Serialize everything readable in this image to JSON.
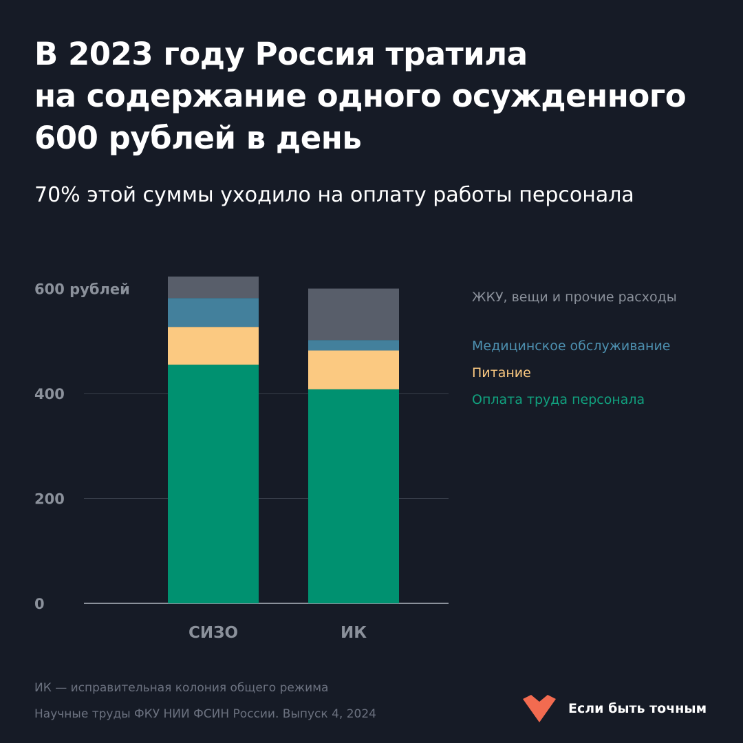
{
  "header": {
    "title_lines": [
      "В 2023 году Россия тратила",
      "на содержание одного осужденного",
      "600 рублей в день"
    ],
    "subtitle": "70% этой суммы уходило на оплату работы персонала"
  },
  "chart_data": {
    "type": "bar",
    "stacked": true,
    "categories": [
      "СИЗО",
      "ИК"
    ],
    "series": [
      {
        "name": "Оплата труда персонала",
        "values": [
          455,
          408
        ],
        "color": "#009170"
      },
      {
        "name": "Питание",
        "values": [
          72,
          74
        ],
        "color": "#fbc981"
      },
      {
        "name": "Медицинское обслуживание",
        "values": [
          55,
          20
        ],
        "color": "#43809c"
      },
      {
        "name": "ЖКУ, вещи и прочие расходы",
        "values": [
          41,
          98
        ],
        "color": "#585e6a"
      }
    ],
    "legend_order": [
      3,
      2,
      1,
      0
    ],
    "yticks": [
      {
        "value": 0,
        "label": "0"
      },
      {
        "value": 200,
        "label": "200"
      },
      {
        "value": 400,
        "label": "400"
      },
      {
        "value": 600,
        "label": "600 рублей"
      }
    ],
    "ylim": [
      0,
      640
    ],
    "grid": true,
    "legend_position": "right"
  },
  "footer": {
    "note": "ИК — исправительная колония общего режима",
    "source": "Научные труды ФКУ НИИ ФСИН России. Выпуск 4, 2024"
  },
  "brand": {
    "name": "Если быть точным",
    "color": "#f26b50",
    "icon": "heart-chevron-logo-icon"
  }
}
